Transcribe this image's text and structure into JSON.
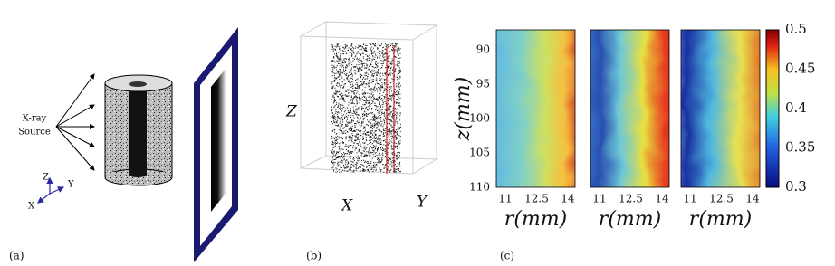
{
  "panel_a": {
    "label": "(a)",
    "source_label": [
      "X-ray",
      "Source"
    ],
    "axes": {
      "z": "Z",
      "y": "Y",
      "x": "X"
    }
  },
  "panel_b": {
    "label": "(b)",
    "axes": {
      "z": "Z",
      "x": "X",
      "y": "Y"
    }
  },
  "panel_c": {
    "label": "(c)",
    "y_axis_label": "z(mm)",
    "y_ticks": [
      90,
      95,
      100,
      105,
      110
    ],
    "maps": [
      {
        "x_axis_label": "r(mm)",
        "x_ticks": [
          11,
          12.5,
          14
        ]
      },
      {
        "x_axis_label": "r(mm)",
        "x_ticks": [
          11,
          12.5,
          14
        ]
      },
      {
        "x_axis_label": "r(mm)",
        "x_ticks": [
          11,
          12.5,
          14
        ]
      }
    ],
    "colorbar_ticks": [
      0.5,
      0.45,
      0.4,
      0.35,
      0.3
    ]
  }
}
